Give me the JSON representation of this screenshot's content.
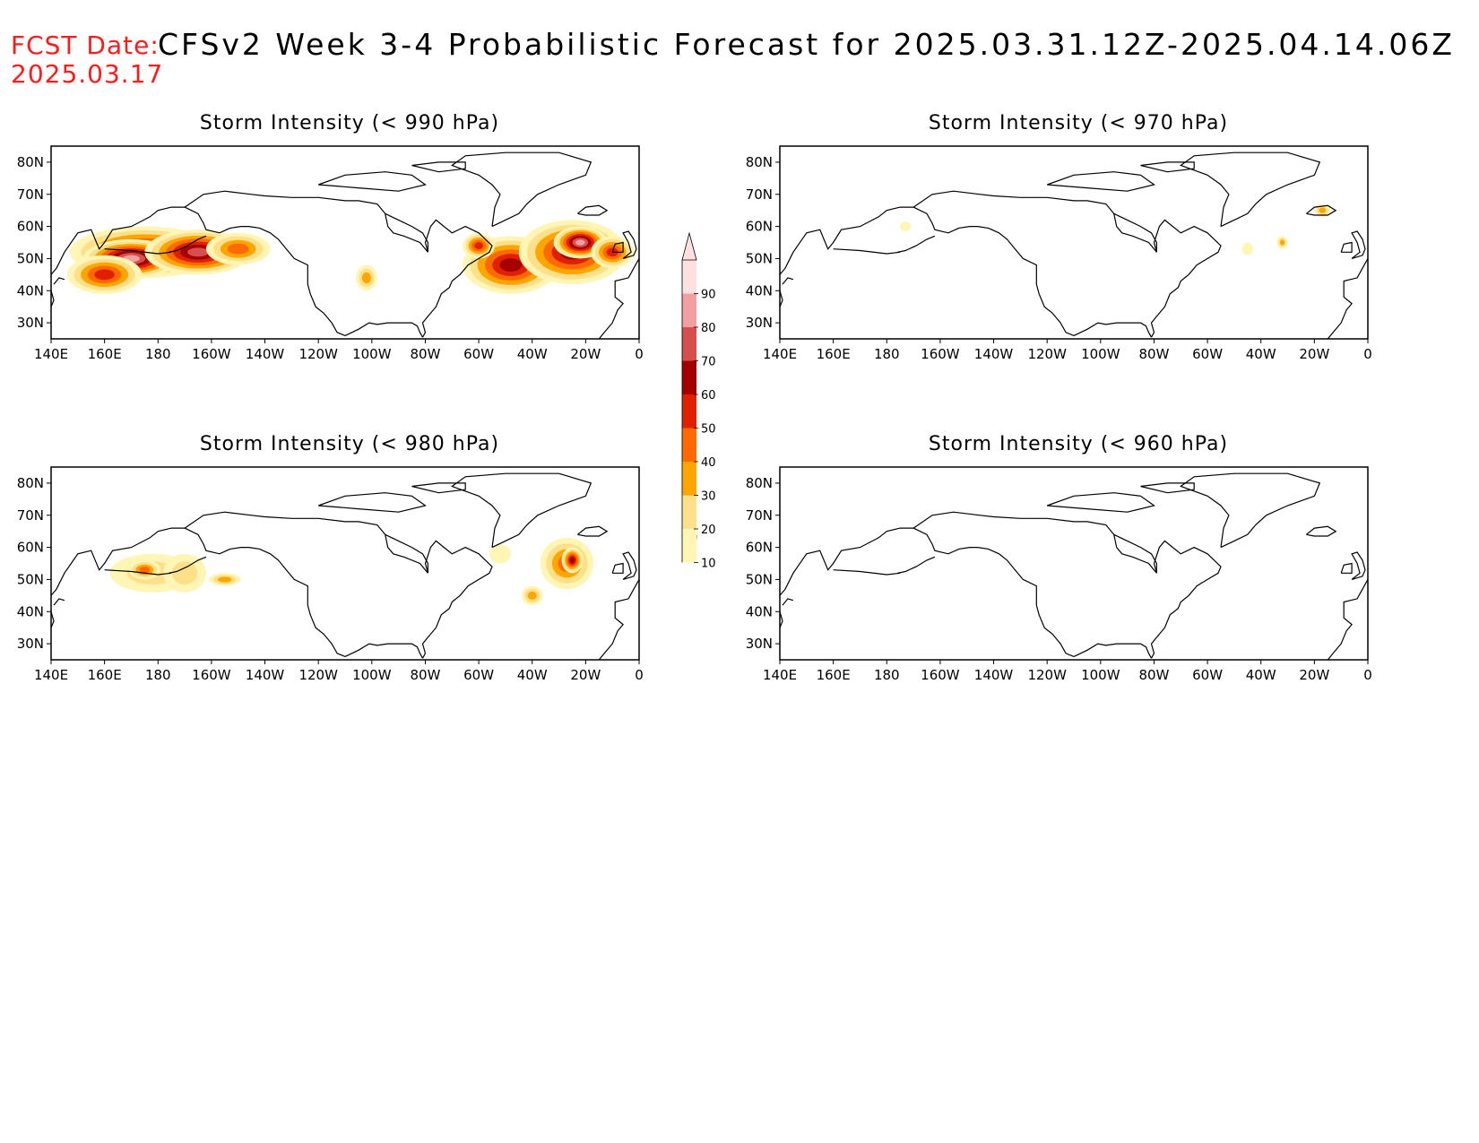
{
  "header": {
    "fcst_label": "FCST Date:",
    "fcst_date": "2025.03.17",
    "title": "CFSv2 Week 3-4 Probabilistic Forecast for 2025.03.31.12Z-2025.04.14.06Z"
  },
  "axes": {
    "lon_ticks": [
      "140E",
      "160E",
      "180",
      "160W",
      "140W",
      "120W",
      "100W",
      "80W",
      "60W",
      "40W",
      "20W",
      "0"
    ],
    "lat_ticks": [
      "80N",
      "70N",
      "60N",
      "50N",
      "40N",
      "30N"
    ]
  },
  "colorbar": {
    "levels": [
      "10",
      "20",
      "30",
      "40",
      "50",
      "60",
      "70",
      "80",
      "90"
    ],
    "colors": [
      "#fff5b4",
      "#ffe08a",
      "#ffa500",
      "#ff6a00",
      "#e02000",
      "#a50000",
      "#d64f4f",
      "#f0a0a0",
      "#ffe0e0"
    ]
  },
  "panels": [
    {
      "title": "Storm Intensity (< 990 hPa)",
      "blobs": [
        {
          "lon": 175,
          "lat": 52,
          "rlon": 28,
          "rlat": 8,
          "level": 5
        },
        {
          "lon": 170,
          "lat": 50,
          "rlon": 18,
          "rlat": 6,
          "level": 7
        },
        {
          "lon": 195,
          "lat": 52,
          "rlon": 20,
          "rlat": 7,
          "level": 6
        },
        {
          "lon": 160,
          "lat": 45,
          "rlon": 14,
          "rlat": 6,
          "level": 4
        },
        {
          "lon": 210,
          "lat": 53,
          "rlon": 12,
          "rlat": 5,
          "level": 3
        },
        {
          "lon": 258,
          "lat": 44,
          "rlon": 4,
          "rlat": 4,
          "level": 2
        },
        {
          "lon": 312,
          "lat": 48,
          "rlon": 18,
          "rlat": 9,
          "level": 5
        },
        {
          "lon": 335,
          "lat": 52,
          "rlon": 20,
          "rlat": 10,
          "level": 5
        },
        {
          "lon": 338,
          "lat": 55,
          "rlon": 10,
          "rlat": 5,
          "level": 7
        },
        {
          "lon": 300,
          "lat": 54,
          "rlon": 6,
          "rlat": 4,
          "level": 4
        },
        {
          "lon": 350,
          "lat": 52,
          "rlon": 8,
          "rlat": 5,
          "level": 4
        }
      ]
    },
    {
      "title": "Storm Intensity (< 970 hPa)",
      "blobs": [
        {
          "lon": 328,
          "lat": 55,
          "rlon": 2,
          "rlat": 2,
          "level": 2
        },
        {
          "lon": 343,
          "lat": 65,
          "rlon": 3,
          "rlat": 2,
          "level": 2
        },
        {
          "lon": 315,
          "lat": 53,
          "rlon": 2,
          "rlat": 2,
          "level": 0
        },
        {
          "lon": 187,
          "lat": 60,
          "rlon": 2,
          "rlat": 1.5,
          "level": 0
        }
      ]
    },
    {
      "title": "Storm Intensity (< 980 hPa)",
      "blobs": [
        {
          "lon": 178,
          "lat": 52,
          "rlon": 16,
          "rlat": 6,
          "level": 1
        },
        {
          "lon": 175,
          "lat": 53,
          "rlon": 6,
          "rlat": 3,
          "level": 3
        },
        {
          "lon": 190,
          "lat": 52,
          "rlon": 8,
          "rlat": 6,
          "level": 1
        },
        {
          "lon": 205,
          "lat": 50,
          "rlon": 6,
          "rlat": 2,
          "level": 2
        },
        {
          "lon": 333,
          "lat": 55,
          "rlon": 10,
          "rlat": 8,
          "level": 3
        },
        {
          "lon": 335,
          "lat": 56,
          "rlon": 4,
          "rlat": 4,
          "level": 5
        },
        {
          "lon": 320,
          "lat": 45,
          "rlon": 4,
          "rlat": 3,
          "level": 2
        },
        {
          "lon": 308,
          "lat": 58,
          "rlon": 4,
          "rlat": 3,
          "level": 0
        }
      ]
    },
    {
      "title": "Storm Intensity (< 960 hPa)",
      "blobs": []
    }
  ]
}
